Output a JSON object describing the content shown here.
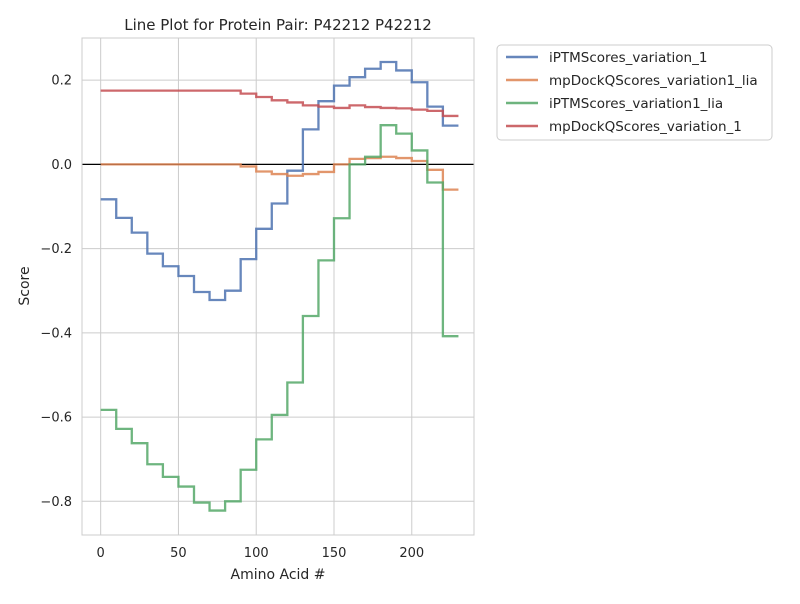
{
  "chart_data": {
    "type": "line",
    "title": "Line Plot for Protein Pair: P42212 P42212",
    "xlabel": "Amino Acid #",
    "ylabel": "Score",
    "xlim": [
      -12,
      240
    ],
    "ylim": [
      -0.88,
      0.3
    ],
    "xticks": [
      0,
      50,
      100,
      150,
      200
    ],
    "yticks": [
      -0.8,
      -0.6,
      -0.4,
      -0.2,
      0.0,
      0.2
    ],
    "ytick_labels": [
      "−0.8",
      "−0.6",
      "−0.4",
      "−0.2",
      "0.0",
      "0.2"
    ],
    "zero_line": 0,
    "grid": true,
    "legend_position": "outside upper right",
    "step": 10,
    "series": [
      {
        "name": "iPTMScores_variation_1",
        "color": "#4c72b0",
        "x": [
          0,
          10,
          20,
          30,
          40,
          50,
          60,
          70,
          80,
          90,
          100,
          110,
          120,
          130,
          140,
          150,
          160,
          170,
          180,
          190,
          200,
          210,
          220,
          230
        ],
        "values": [
          -0.083,
          -0.127,
          -0.162,
          -0.212,
          -0.242,
          -0.265,
          -0.303,
          -0.322,
          -0.3,
          -0.225,
          -0.153,
          -0.093,
          -0.015,
          0.083,
          0.15,
          0.187,
          0.207,
          0.227,
          0.243,
          0.223,
          0.195,
          0.137,
          0.092,
          0.092
        ]
      },
      {
        "name": "mpDockQScores_variation1_lia",
        "color": "#dd8452",
        "x": [
          0,
          10,
          20,
          30,
          40,
          50,
          60,
          70,
          80,
          90,
          100,
          110,
          120,
          130,
          140,
          150,
          160,
          170,
          180,
          190,
          200,
          210,
          220,
          230
        ],
        "values": [
          0.0,
          0.0,
          0.0,
          0.0,
          0.0,
          0.0,
          0.0,
          0.0,
          0.0,
          -0.005,
          -0.017,
          -0.023,
          -0.027,
          -0.023,
          -0.018,
          0.0,
          0.013,
          0.015,
          0.018,
          0.015,
          0.008,
          -0.013,
          -0.06,
          -0.06
        ]
      },
      {
        "name": "iPTMScores_variation1_lia",
        "color": "#55a868",
        "x": [
          0,
          10,
          20,
          30,
          40,
          50,
          60,
          70,
          80,
          90,
          100,
          110,
          120,
          130,
          140,
          150,
          160,
          170,
          180,
          190,
          200,
          210,
          220,
          230
        ],
        "values": [
          -0.583,
          -0.628,
          -0.662,
          -0.712,
          -0.742,
          -0.765,
          -0.803,
          -0.822,
          -0.8,
          -0.725,
          -0.653,
          -0.595,
          -0.518,
          -0.36,
          -0.228,
          -0.128,
          0.0,
          0.018,
          0.093,
          0.073,
          0.033,
          -0.043,
          -0.408,
          -0.408
        ]
      },
      {
        "name": "mpDockQScores_variation_1",
        "color": "#c44e52",
        "x": [
          0,
          10,
          20,
          30,
          40,
          50,
          60,
          70,
          80,
          90,
          100,
          110,
          120,
          130,
          140,
          150,
          160,
          170,
          180,
          190,
          200,
          210,
          220,
          230
        ],
        "values": [
          0.175,
          0.175,
          0.175,
          0.175,
          0.175,
          0.175,
          0.175,
          0.175,
          0.175,
          0.168,
          0.16,
          0.152,
          0.147,
          0.14,
          0.137,
          0.134,
          0.14,
          0.136,
          0.134,
          0.133,
          0.13,
          0.127,
          0.115,
          0.115
        ]
      }
    ]
  }
}
